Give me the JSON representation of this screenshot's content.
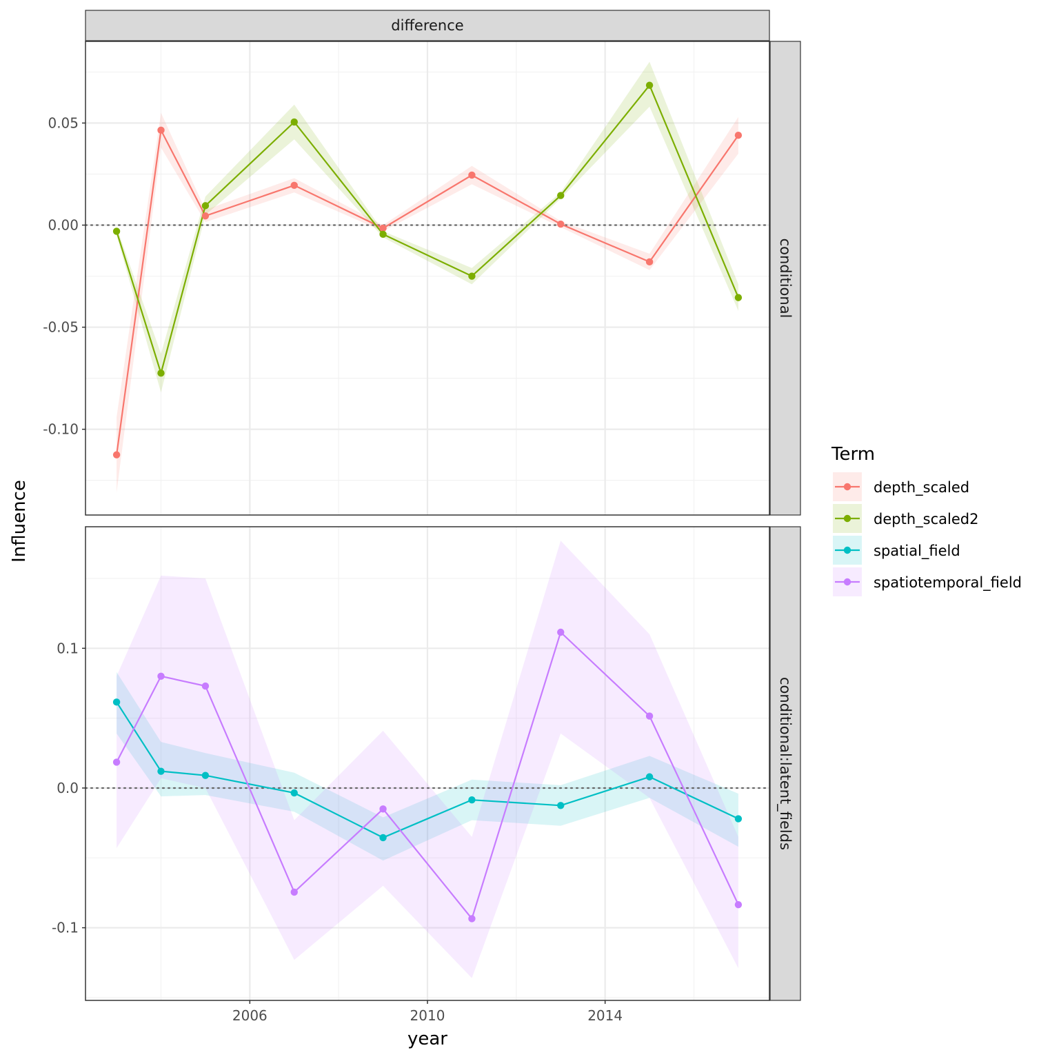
{
  "chart_data": {
    "type": "line",
    "column_strip": "difference",
    "xlabel": "year",
    "ylabel": "Influence",
    "x_ticks": [
      2006,
      2010,
      2014
    ],
    "xlim": [
      2002.3,
      2017.7
    ],
    "legend": {
      "title": "Term",
      "placement": "right",
      "entries": [
        "depth_scaled",
        "depth_scaled2",
        "spatial_field",
        "spatiotemporal_field"
      ]
    },
    "colors": {
      "depth_scaled": "#F8766D",
      "depth_scaled2": "#7CAE00",
      "spatial_field": "#00BFC4",
      "spatiotemporal_field": "#C77CFF"
    },
    "zero_line": "dotted",
    "grid": true,
    "panels": [
      {
        "strip": "conditional",
        "ylim": [
          -0.142,
          0.09
        ],
        "y_ticks": [
          -0.1,
          -0.05,
          0.0,
          0.05
        ],
        "y_tick_labels": [
          "-0.10",
          "-0.05",
          "0.00",
          "0.05"
        ],
        "series": [
          {
            "name": "depth_scaled",
            "x": [
              2003,
              2004,
              2005,
              2007,
              2009,
              2011,
              2013,
              2015,
              2017
            ],
            "y": [
              -0.1125,
              0.0465,
              0.0045,
              0.0195,
              -0.0015,
              0.0245,
              0.0005,
              -0.018,
              0.044
            ],
            "lower": [
              -0.131,
              0.038,
              0.0015,
              0.016,
              -0.003,
              0.02,
              -0.001,
              -0.022,
              0.035
            ],
            "upper": [
              -0.094,
              0.055,
              0.0075,
              0.023,
              0.0,
              0.029,
              0.002,
              -0.014,
              0.053
            ]
          },
          {
            "name": "depth_scaled2",
            "x": [
              2003,
              2004,
              2005,
              2007,
              2009,
              2011,
              2013,
              2015,
              2017
            ],
            "y": [
              -0.003,
              -0.0725,
              0.0095,
              0.0505,
              -0.0045,
              -0.025,
              0.0145,
              0.0685,
              -0.0355
            ],
            "lower": [
              -0.005,
              -0.082,
              0.005,
              0.042,
              -0.006,
              -0.029,
              0.013,
              0.058,
              -0.042
            ],
            "upper": [
              -0.001,
              -0.063,
              0.014,
              0.059,
              -0.003,
              -0.021,
              0.016,
              0.08,
              -0.029
            ]
          }
        ]
      },
      {
        "strip": "conditional:latent_fields",
        "ylim": [
          -0.152,
          0.187
        ],
        "y_ticks": [
          -0.1,
          0.0,
          0.1
        ],
        "y_tick_labels": [
          "-0.1",
          "0.0",
          "0.1"
        ],
        "series": [
          {
            "name": "spatial_field",
            "x": [
              2003,
              2004,
              2005,
              2007,
              2009,
              2011,
              2013,
              2015,
              2017
            ],
            "y": [
              0.0615,
              0.012,
              0.009,
              -0.0035,
              -0.0355,
              -0.0085,
              -0.0125,
              0.008,
              -0.022
            ],
            "lower": [
              0.039,
              -0.006,
              -0.005,
              -0.017,
              -0.052,
              -0.023,
              -0.027,
              -0.007,
              -0.042
            ],
            "upper": [
              0.083,
              0.033,
              0.025,
              0.011,
              -0.021,
              0.006,
              0.002,
              0.023,
              -0.004
            ]
          },
          {
            "name": "spatiotemporal_field",
            "x": [
              2003,
              2004,
              2005,
              2007,
              2009,
              2011,
              2013,
              2015,
              2017
            ],
            "y": [
              0.0185,
              0.08,
              0.073,
              -0.0745,
              -0.015,
              -0.0935,
              0.1115,
              0.0515,
              -0.0835
            ],
            "lower": [
              -0.043,
              0.007,
              0.0,
              -0.123,
              -0.07,
              -0.136,
              0.039,
              -0.007,
              -0.129
            ],
            "upper": [
              0.08,
              0.152,
              0.15,
              -0.023,
              0.041,
              -0.035,
              0.177,
              0.11,
              -0.035
            ]
          }
        ]
      }
    ]
  }
}
